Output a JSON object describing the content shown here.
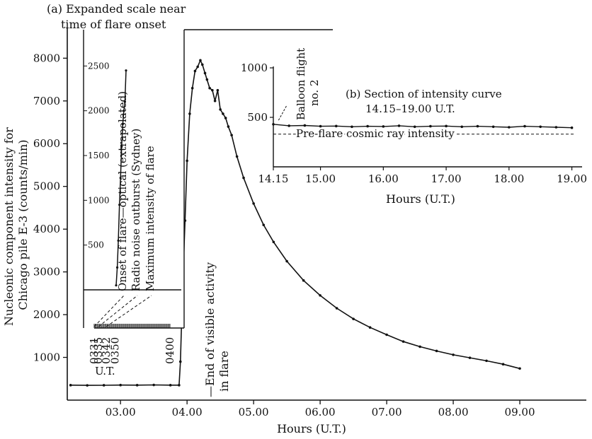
{
  "chart_data": [
    {
      "type": "line",
      "title": "",
      "xlabel": "Hours (U.T.)",
      "ylabel_lines": [
        "Nucleonic component intensity for",
        "Chicago pile E-3 (counts/min)"
      ],
      "xlim": [
        2.2,
        10.0
      ],
      "ylim": [
        0,
        8700
      ],
      "x_ticks": [
        3,
        4,
        5,
        6,
        7,
        8,
        9
      ],
      "x_tick_labels": [
        "03.00",
        "04.00",
        "05.00",
        "06.00",
        "07.00",
        "08.00",
        "09.00"
      ],
      "y_ticks": [
        1000,
        2000,
        3000,
        4000,
        5000,
        6000,
        7000,
        8000
      ],
      "y_tick_labels": [
        "1000",
        "2000",
        "3000",
        "4000",
        "5000",
        "6000",
        "7000",
        "8000"
      ],
      "series": [
        {
          "x": [
            2.25,
            2.5,
            2.75,
            3.0,
            3.25,
            3.5,
            3.75,
            3.88,
            3.9,
            3.93,
            3.97,
            4.0,
            4.04,
            4.08,
            4.12,
            4.16,
            4.2,
            4.23,
            4.27,
            4.3,
            4.34,
            4.38,
            4.42,
            4.46,
            4.5,
            4.54,
            4.58,
            4.62,
            4.67,
            4.75,
            4.85,
            5.0,
            5.15,
            5.3,
            5.5,
            5.75,
            6.0,
            6.25,
            6.5,
            6.75,
            7.0,
            7.25,
            7.5,
            7.75,
            8.0,
            8.25,
            8.5,
            8.75,
            9.0
          ],
          "y": [
            350,
            345,
            348,
            352,
            350,
            355,
            350,
            350,
            900,
            2500,
            4200,
            5600,
            6700,
            7300,
            7700,
            7800,
            7950,
            7850,
            7650,
            7500,
            7300,
            7250,
            7000,
            7250,
            6800,
            6700,
            6600,
            6400,
            6200,
            5700,
            5200,
            4600,
            4100,
            3700,
            3250,
            2800,
            2450,
            2150,
            1900,
            1700,
            1530,
            1370,
            1250,
            1150,
            1060,
            990,
            920,
            840,
            740
          ]
        }
      ]
    },
    {
      "type": "line",
      "title_lines": [
        "(a)  Expanded scale near",
        "time of flare onset"
      ],
      "xlabel": "U.T.",
      "xlim": [
        331,
        400
      ],
      "ylim": [
        0,
        2700
      ],
      "x_tick_labels": [
        "0331",
        "0335",
        "0342",
        "0350",
        "0400"
      ],
      "y_ticks": [
        500,
        1000,
        1500,
        2000,
        2500
      ],
      "y_tick_labels": [
        "500",
        "1000",
        "1500",
        "2000",
        "2500"
      ],
      "baseline": 0,
      "series": [
        {
          "x": [
            351,
            352,
            353,
            354,
            355,
            356,
            357,
            358,
            359,
            360
          ],
          "y": [
            50,
            250,
            550,
            950,
            1250,
            1600,
            1850,
            2000,
            2100,
            2450
          ]
        }
      ],
      "annotations": [
        {
          "text": "Onset of flare—optical (extrapolated)",
          "time": 331
        },
        {
          "text": "Radio noise outburst (Sydney)",
          "time": 335
        },
        {
          "text": "Maximum intensity of flare",
          "time": 342
        }
      ]
    },
    {
      "type": "line",
      "title_lines": [
        "(b)  Section of intensity curve",
        "14.15–19.00 U.T."
      ],
      "xlabel": "Hours  (U.T.)",
      "xlim": [
        14.25,
        19.05
      ],
      "ylim": [
        0,
        1000
      ],
      "x_ticks": [
        14.25,
        15,
        16,
        17,
        18,
        19
      ],
      "x_tick_labels": [
        "14.15",
        "15.00",
        "16.00",
        "17.00",
        "18.00",
        "19.00"
      ],
      "y_ticks": [
        500,
        1000
      ],
      "y_tick_labels": [
        "500",
        "1000"
      ],
      "series": [
        {
          "x": [
            14.25,
            14.5,
            14.75,
            15.0,
            15.25,
            15.5,
            15.75,
            16.0,
            16.25,
            16.5,
            16.75,
            17.0,
            17.25,
            17.5,
            17.75,
            18.0,
            18.25,
            18.5,
            18.75,
            19.0
          ],
          "y": [
            430,
            415,
            418,
            410,
            412,
            405,
            410,
            408,
            415,
            405,
            410,
            412,
            405,
            410,
            405,
            400,
            410,
            405,
            400,
            395
          ]
        }
      ],
      "reference_line": {
        "label": "Pre-flare cosmic ray intensity",
        "value": 330
      },
      "annotation": {
        "text_lines": [
          "Balloon flight",
          "no. 2"
        ],
        "time": 14.3
      }
    }
  ],
  "labels": {
    "end_activity_lines": [
      "—End of visible activity",
      "in flare"
    ]
  }
}
